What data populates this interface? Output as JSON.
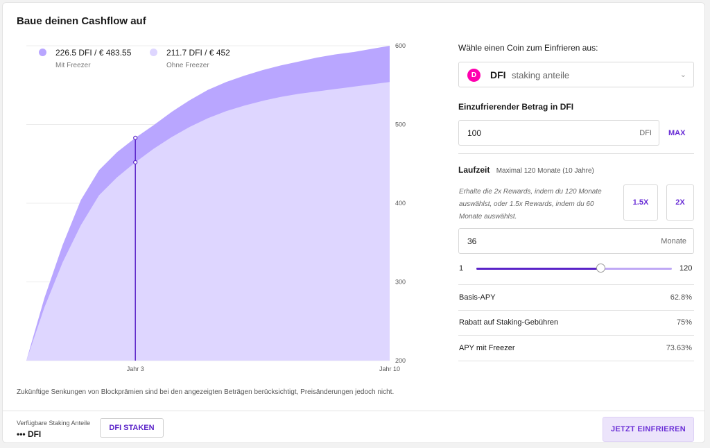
{
  "title": "Baue deinen Cashflow auf",
  "legend": {
    "with": {
      "value": "226.5 DFI / € 483.55",
      "label": "Mit Freezer",
      "color": "#b9a6ff"
    },
    "without": {
      "value": "211.7 DFI / € 452",
      "label": "Ohne Freezer",
      "color": "#ded6ff"
    }
  },
  "chart_data": {
    "type": "area",
    "series": [
      {
        "name": "Mit Freezer",
        "x": [
          0,
          0.5,
          1,
          1.5,
          2,
          2.5,
          3,
          3.5,
          4,
          4.5,
          5,
          5.5,
          6,
          6.5,
          7,
          7.5,
          8,
          8.5,
          9,
          9.5,
          10
        ],
        "values": [
          200,
          280,
          347,
          404,
          442,
          465,
          483,
          499,
          516,
          531,
          544,
          554,
          562,
          569,
          575,
          580,
          585,
          589,
          592,
          596,
          600
        ]
      },
      {
        "name": "Ohne Freezer",
        "x": [
          0,
          0.5,
          1,
          1.5,
          2,
          2.5,
          3,
          3.5,
          4,
          4.5,
          5,
          5.5,
          6,
          6.5,
          7,
          7.5,
          8,
          8.5,
          9,
          9.5,
          10
        ],
        "values": [
          200,
          268,
          325,
          372,
          410,
          433,
          452,
          469,
          484,
          497,
          508,
          517,
          524,
          530,
          535,
          539,
          542,
          545,
          548,
          551,
          554
        ]
      }
    ],
    "x_ticks": [
      {
        "x": 3,
        "label": "Jahr 3"
      },
      {
        "x": 10,
        "label": "Jahr 10"
      }
    ],
    "y_ticks": [
      200,
      300,
      400,
      500,
      600
    ],
    "ylim": [
      200,
      600
    ],
    "xlim": [
      0,
      10
    ],
    "marker_x": 3,
    "marker_values": [
      483,
      452
    ],
    "grid": true
  },
  "chart_note": "Zukünftige Senkungen von Blockprämien sind bei den angezeigten Beträgen berücksichtigt, Preisänderungen jedoch nicht.",
  "footer": {
    "available_label": "Verfügbare Staking Anteile",
    "available_value": "••• DFI",
    "stake_button": "DFI STAKEN",
    "freeze_button": "JETZT EINFRIEREN"
  },
  "panel": {
    "coin_label": "Wähle einen Coin zum Einfrieren aus:",
    "coin_name": "DFI",
    "coin_sub": "staking anteile",
    "coin_icon": "defichain-icon",
    "amount_label": "Einzufrierender Betrag in DFI",
    "amount_value": "100",
    "amount_unit": "DFI",
    "max_label": "MAX",
    "term_label": "Laufzeit",
    "term_hint": "Maximal 120 Monate (10 Jahre)",
    "rewards_hint": "Erhalte die 2x Rewards, indem du 120 Monate auswählst, oder 1.5x Rewards, indem du 60 Monate auswählst.",
    "mult_1": "1.5X",
    "mult_2": "2X",
    "months_value": "36",
    "months_unit": "Monate",
    "slider_min": "1",
    "slider_max": "120",
    "slider_value": 36,
    "rows": [
      {
        "label": "Basis-APY",
        "value": "62.8%"
      },
      {
        "label": "Rabatt auf Staking-Gebühren",
        "value": "75%"
      },
      {
        "label": "APY mit Freezer",
        "value": "73.63%"
      }
    ]
  },
  "colors": {
    "accent": "#5a23c8",
    "area_dark": "#b9a6ff",
    "area_light": "#ded6ff",
    "coin": "#ff00af"
  }
}
